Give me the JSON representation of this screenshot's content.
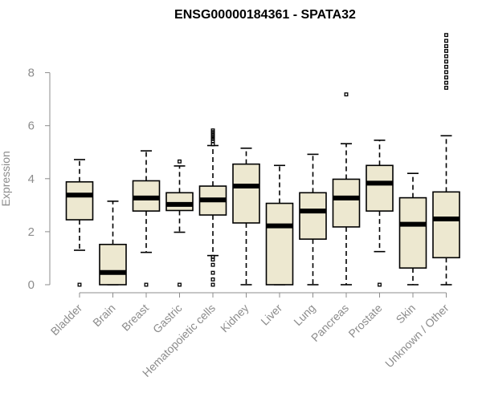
{
  "chart_data": {
    "type": "boxplot",
    "title": "ENSG00000184361 - SPATA32",
    "xlabel": "",
    "ylabel": "Expression",
    "ylim": [
      0,
      9.6
    ],
    "yticks": [
      0,
      2,
      4,
      6,
      8
    ],
    "box_fill": "#ede8d0",
    "categories": [
      "Bladder",
      "Brain",
      "Breast",
      "Gastric",
      "Hematopoietic cells",
      "Kidney",
      "Liver",
      "Lung",
      "Pancreas",
      "Prostate",
      "Skin",
      "Unknown / Other"
    ],
    "boxes": [
      {
        "name": "Bladder",
        "whislo": 1.3,
        "q1": 2.45,
        "median": 3.38,
        "q3": 3.88,
        "whishi": 4.72,
        "outliers": [
          0.0
        ]
      },
      {
        "name": "Brain",
        "whislo": 0.0,
        "q1": 0.0,
        "median": 0.46,
        "q3": 1.52,
        "whishi": 3.15,
        "outliers": []
      },
      {
        "name": "Breast",
        "whislo": 1.22,
        "q1": 2.78,
        "median": 3.27,
        "q3": 3.92,
        "whishi": 5.05,
        "outliers": [
          0.0
        ]
      },
      {
        "name": "Gastric",
        "whislo": 1.98,
        "q1": 2.8,
        "median": 3.03,
        "q3": 3.47,
        "whishi": 4.48,
        "outliers": [
          0.0,
          4.65
        ]
      },
      {
        "name": "Hematopoietic cells",
        "whislo": 1.1,
        "q1": 2.63,
        "median": 3.2,
        "q3": 3.72,
        "whishi": 5.25,
        "outliers": [
          0.0,
          0.2,
          0.45,
          0.75,
          0.95,
          1.05,
          5.3,
          5.42,
          5.5,
          5.58,
          5.64,
          5.7,
          5.76,
          5.82
        ]
      },
      {
        "name": "Kidney",
        "whislo": 0.0,
        "q1": 2.33,
        "median": 3.72,
        "q3": 4.55,
        "whishi": 5.15,
        "outliers": []
      },
      {
        "name": "Liver",
        "whislo": 0.0,
        "q1": 0.0,
        "median": 2.22,
        "q3": 3.07,
        "whishi": 4.5,
        "outliers": []
      },
      {
        "name": "Lung",
        "whislo": 0.0,
        "q1": 1.72,
        "median": 2.78,
        "q3": 3.47,
        "whishi": 4.92,
        "outliers": []
      },
      {
        "name": "Pancreas",
        "whislo": 0.0,
        "q1": 2.18,
        "median": 3.27,
        "q3": 3.98,
        "whishi": 5.32,
        "outliers": [
          7.18
        ]
      },
      {
        "name": "Prostate",
        "whislo": 1.25,
        "q1": 2.78,
        "median": 3.83,
        "q3": 4.5,
        "whishi": 5.45,
        "outliers": [
          0.0
        ]
      },
      {
        "name": "Skin",
        "whislo": 0.0,
        "q1": 0.63,
        "median": 2.28,
        "q3": 3.28,
        "whishi": 4.2,
        "outliers": []
      },
      {
        "name": "Unknown / Other",
        "whislo": 0.0,
        "q1": 1.02,
        "median": 2.48,
        "q3": 3.5,
        "whishi": 5.62,
        "outliers": [
          7.43,
          7.62,
          7.82,
          8.02,
          8.22,
          8.42,
          8.62,
          8.82,
          9.0,
          9.2,
          9.42
        ]
      }
    ]
  }
}
